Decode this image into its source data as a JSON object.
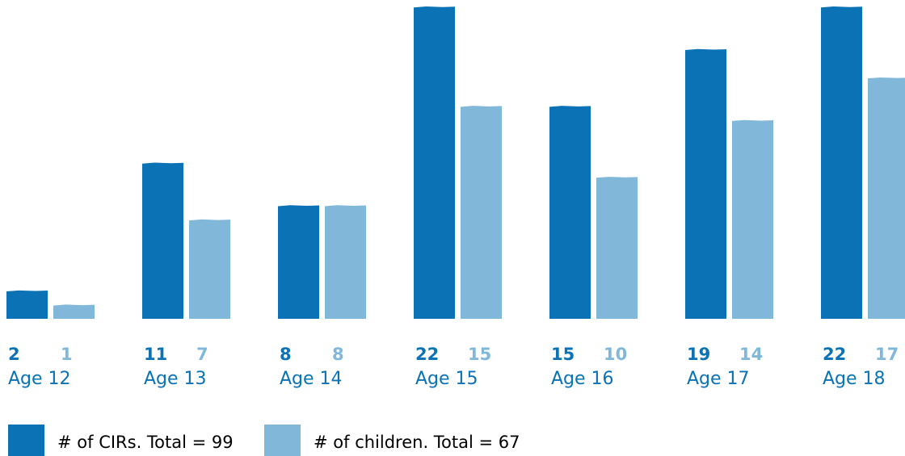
{
  "chart_data": {
    "type": "bar",
    "categories": [
      "Age 12",
      "Age 13",
      "Age 14",
      "Age 15",
      "Age 16",
      "Age 17",
      "Age 18"
    ],
    "series": [
      {
        "name": "# of CIRs. Total = 99",
        "values": [
          2,
          11,
          8,
          22,
          15,
          19,
          22
        ],
        "color": "#0a72b5"
      },
      {
        "name": "# of children. Total = 67",
        "values": [
          1,
          7,
          8,
          15,
          10,
          14,
          17
        ],
        "color": "#81b8da"
      }
    ],
    "title": "",
    "xlabel": "",
    "ylabel": "",
    "ylim": [
      0,
      22
    ],
    "grid": false,
    "legend": "bottom-left"
  },
  "legend": {
    "items": [
      {
        "label": "# of CIRs. Total = 99",
        "color": "#0a72b5"
      },
      {
        "label": "# of children. Total = 67",
        "color": "#81b8da"
      }
    ]
  }
}
